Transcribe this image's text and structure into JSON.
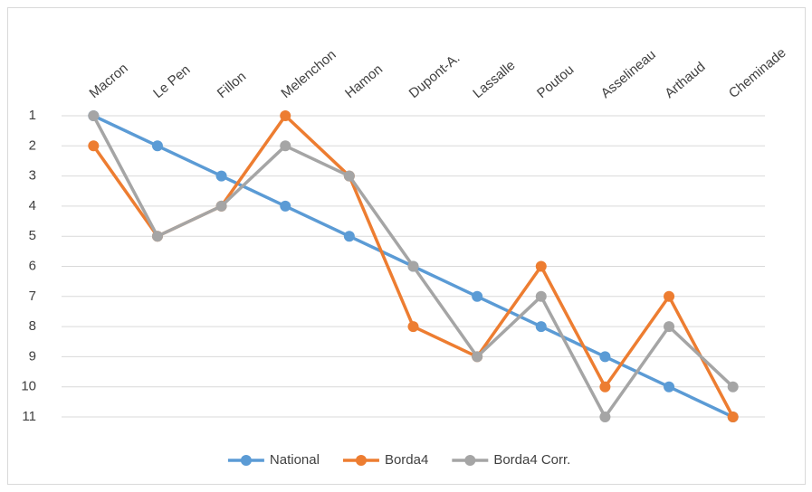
{
  "chart_data": {
    "type": "line",
    "categories": [
      "Macron",
      "Le Pen",
      "Fillon",
      "Melenchon",
      "Hamon",
      "Dupont-A.",
      "Lassalle",
      "Poutou",
      "Asselineau",
      "Arthaud",
      "Cheminade"
    ],
    "series": [
      {
        "name": "National",
        "color": "#5b9bd5",
        "values": [
          1,
          2,
          3,
          4,
          5,
          6,
          7,
          8,
          9,
          10,
          11
        ]
      },
      {
        "name": "Borda4",
        "color": "#ed7d31",
        "values": [
          2,
          5,
          4,
          1,
          3,
          8,
          9,
          6,
          10,
          7,
          11
        ]
      },
      {
        "name": "Borda4 Corr.",
        "color": "#a5a5a5",
        "values": [
          1,
          5,
          4,
          2,
          3,
          6,
          9,
          7,
          11,
          8,
          10
        ]
      }
    ],
    "ylim": [
      1,
      11
    ],
    "yticks": [
      1,
      2,
      3,
      4,
      5,
      6,
      7,
      8,
      9,
      10,
      11
    ],
    "y_inverted": true,
    "grid": true,
    "legend": "bottom"
  }
}
